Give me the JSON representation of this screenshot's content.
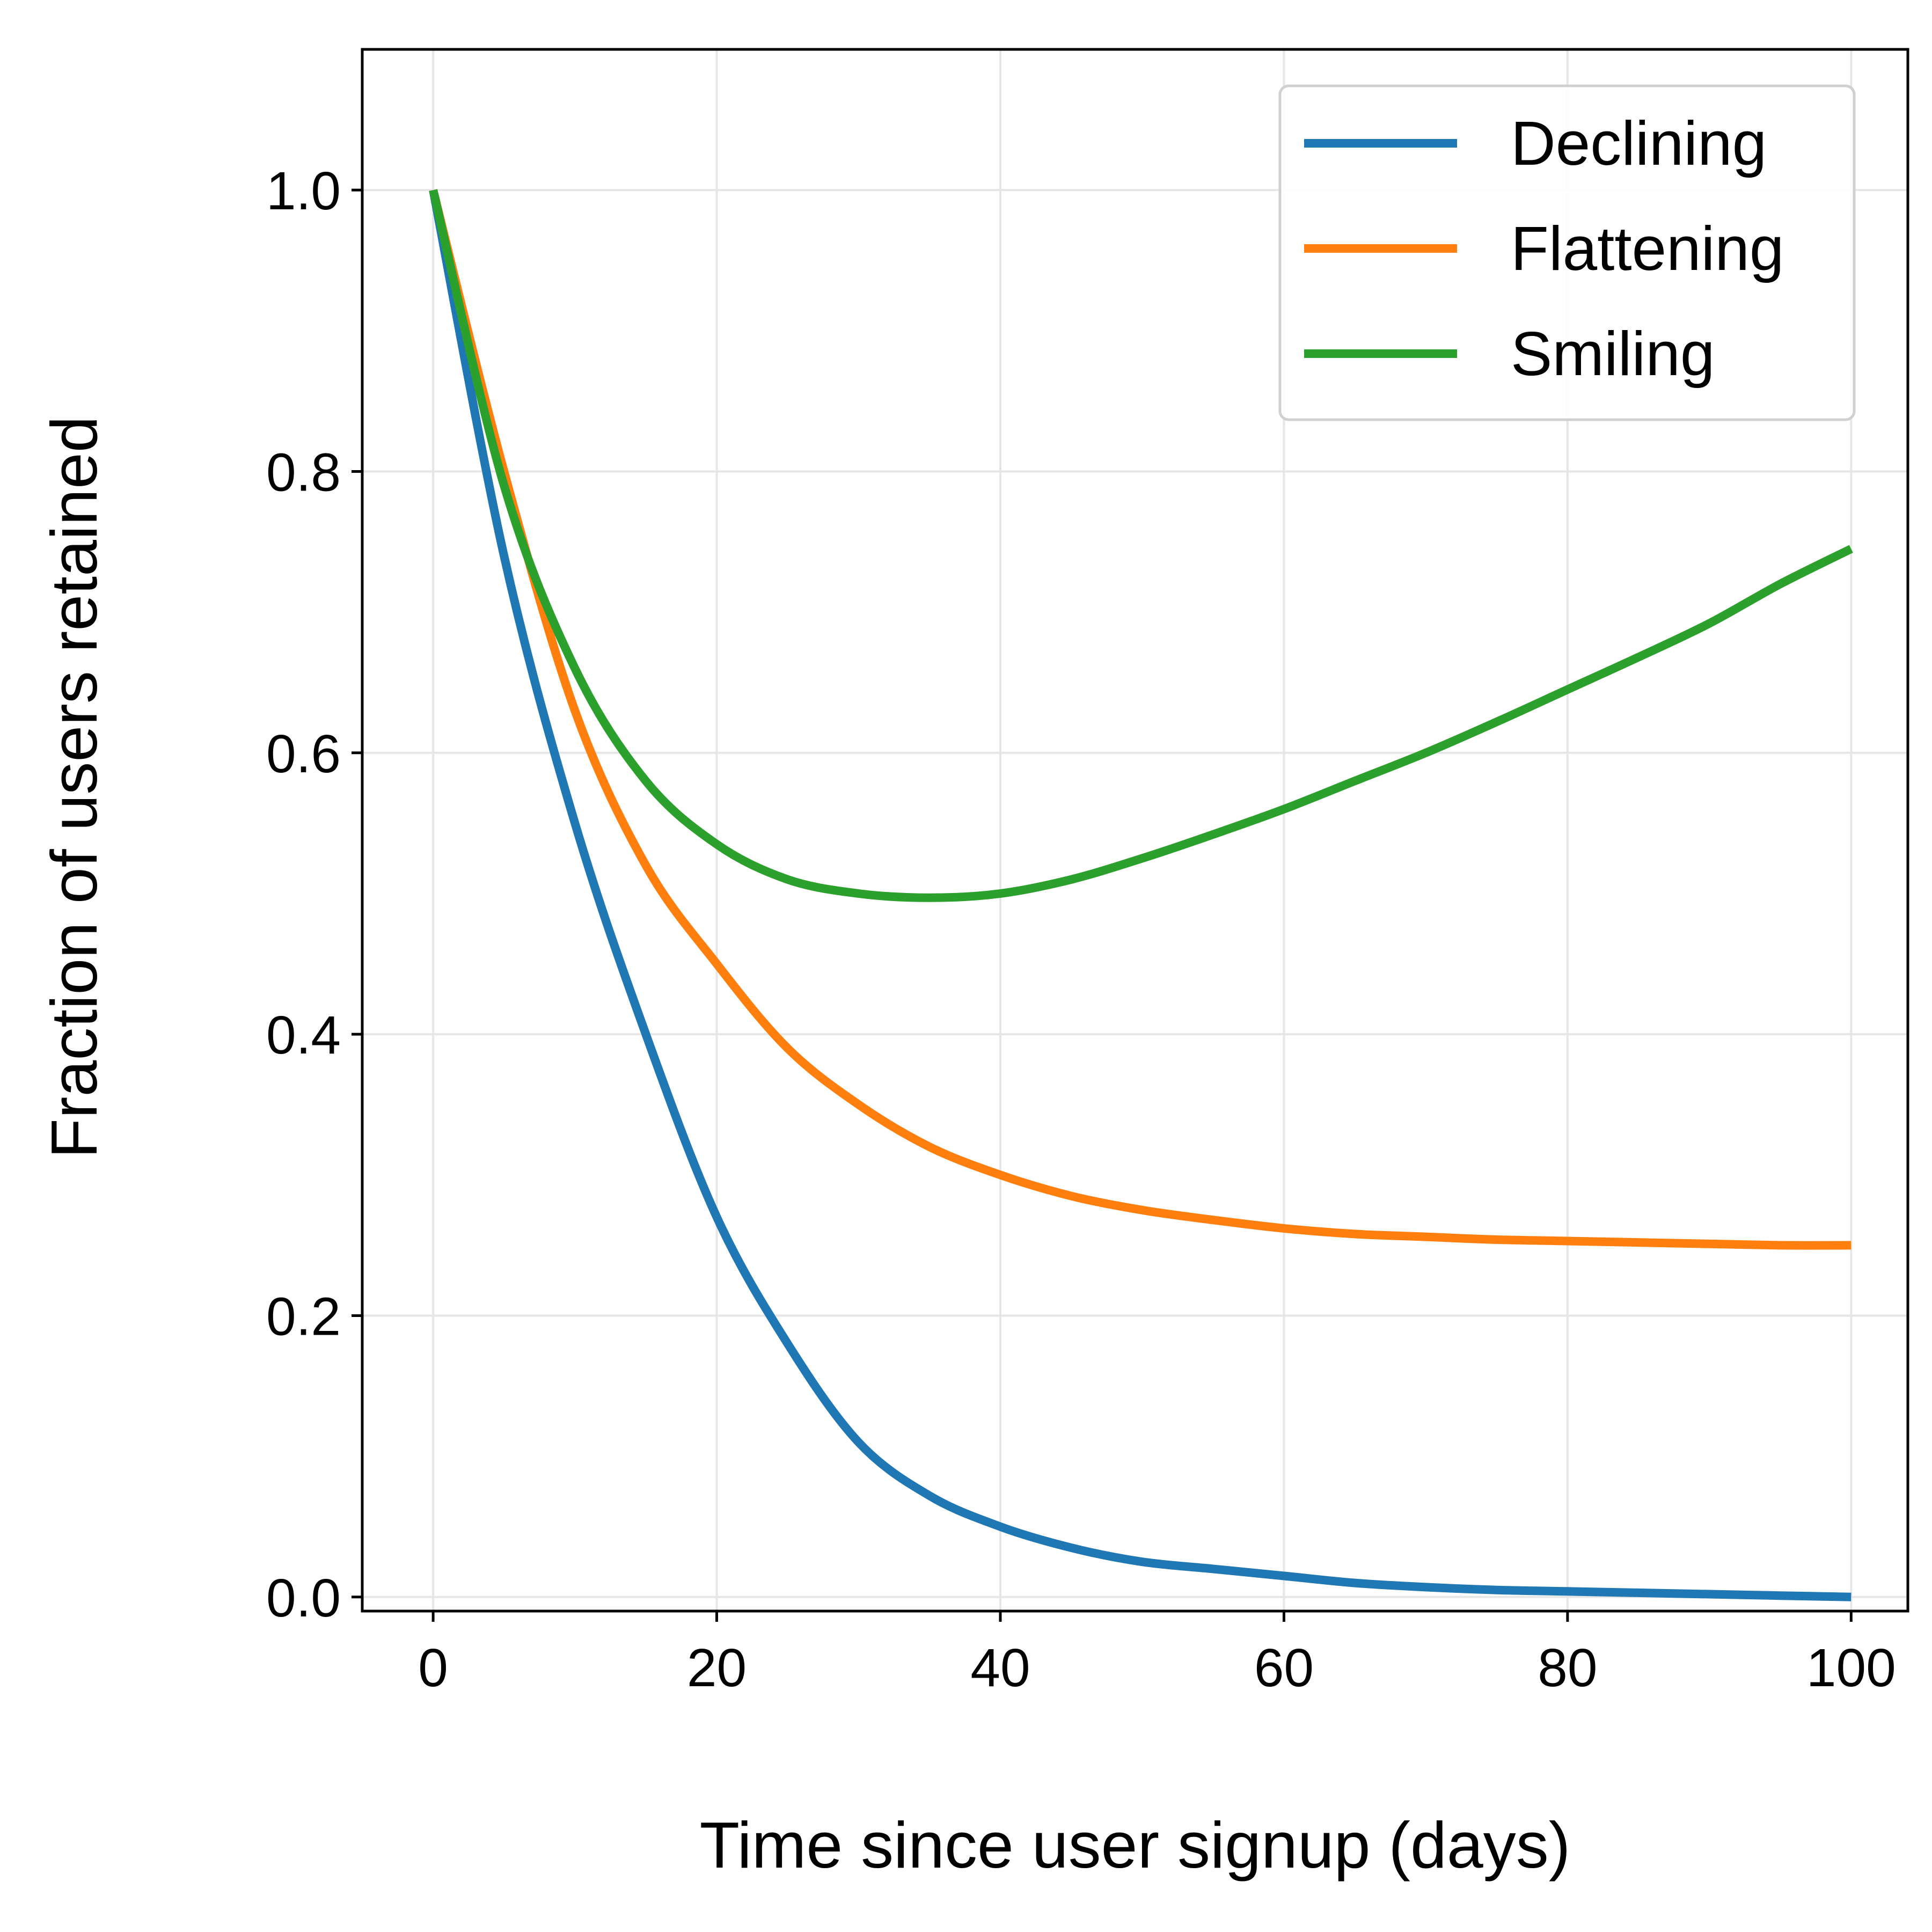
{
  "chart_data": {
    "type": "line",
    "xlabel": "Time since user signup (days)",
    "ylabel": "Fraction of users retained",
    "xlim": [
      -5,
      104
    ],
    "ylim": [
      -0.01,
      1.1
    ],
    "grid": true,
    "legend_position": "top-right",
    "x_ticks": [
      0,
      20,
      40,
      60,
      80,
      100
    ],
    "x_tick_labels": [
      "0",
      "20",
      "40",
      "60",
      "80",
      "100"
    ],
    "y_ticks": [
      0.0,
      0.2,
      0.4,
      0.6,
      0.8,
      1.0
    ],
    "y_tick_labels": [
      "0.0",
      "0.2",
      "0.4",
      "0.6",
      "0.8",
      "1.0"
    ],
    "x": [
      0,
      5,
      10,
      15,
      20,
      25,
      30,
      35,
      40,
      45,
      50,
      55,
      60,
      65,
      70,
      75,
      80,
      85,
      90,
      95,
      100
    ],
    "series": [
      {
        "name": "Declining",
        "color": "#1f77b4",
        "values": [
          1.0,
          0.74,
          0.55,
          0.4,
          0.27,
          0.18,
          0.11,
          0.072,
          0.05,
          0.035,
          0.025,
          0.02,
          0.015,
          0.01,
          0.007,
          0.005,
          0.004,
          0.003,
          0.002,
          0.001,
          0.0
        ]
      },
      {
        "name": "Flattening",
        "color": "#ff7f0e",
        "values": [
          1.0,
          0.8,
          0.63,
          0.52,
          0.45,
          0.39,
          0.35,
          0.32,
          0.3,
          0.285,
          0.275,
          0.268,
          0.262,
          0.258,
          0.256,
          0.254,
          0.253,
          0.252,
          0.251,
          0.25,
          0.25
        ]
      },
      {
        "name": "Smiling",
        "color": "#2ca02c",
        "values": [
          1.0,
          0.79,
          0.66,
          0.58,
          0.535,
          0.51,
          0.5,
          0.497,
          0.5,
          0.51,
          0.525,
          0.542,
          0.56,
          0.58,
          0.6,
          0.622,
          0.645,
          0.668,
          0.692,
          0.72,
          0.745
        ]
      }
    ]
  },
  "colors": {
    "axes": "#000000",
    "grid": "#e6e6e6",
    "legend_border": "#d0d0d0",
    "background": "#ffffff"
  }
}
